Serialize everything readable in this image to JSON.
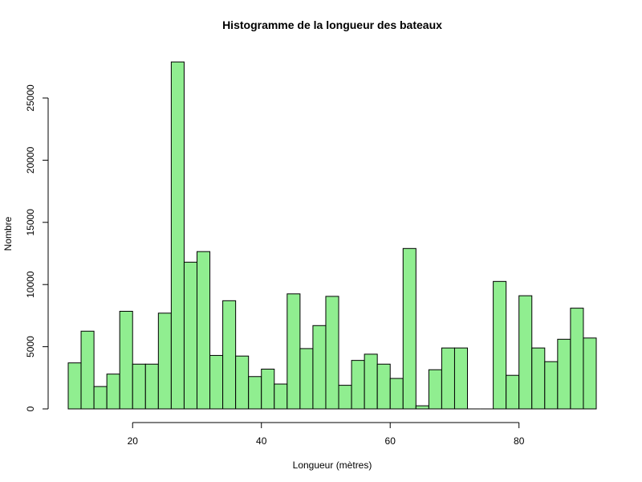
{
  "chart_data": {
    "type": "bar",
    "title": "Histogramme de la longueur des bateaux",
    "xlabel": "Longueur (mètres)",
    "ylabel": "Nombre",
    "bin_width": 2,
    "bin_start": 10,
    "bin_end": 92,
    "xticks": [
      20,
      40,
      60,
      80
    ],
    "yticks": [
      0,
      5000,
      10000,
      15000,
      20000,
      25000
    ],
    "xlim": [
      10,
      92
    ],
    "ylim": [
      0,
      28000
    ],
    "bar_color": "#90EE90",
    "edge_color": "#000000",
    "grid": false,
    "values": [
      3700,
      6250,
      1800,
      2800,
      7850,
      3600,
      3600,
      7700,
      27900,
      11800,
      12650,
      4300,
      8700,
      4250,
      2600,
      3200,
      2000,
      9250,
      4850,
      6700,
      9050,
      1900,
      3900,
      4400,
      3600,
      2450,
      12900,
      250,
      3150,
      4900,
      4900,
      0,
      0,
      10250,
      2700,
      9100,
      4900,
      3800,
      5600,
      8100,
      5700
    ]
  }
}
